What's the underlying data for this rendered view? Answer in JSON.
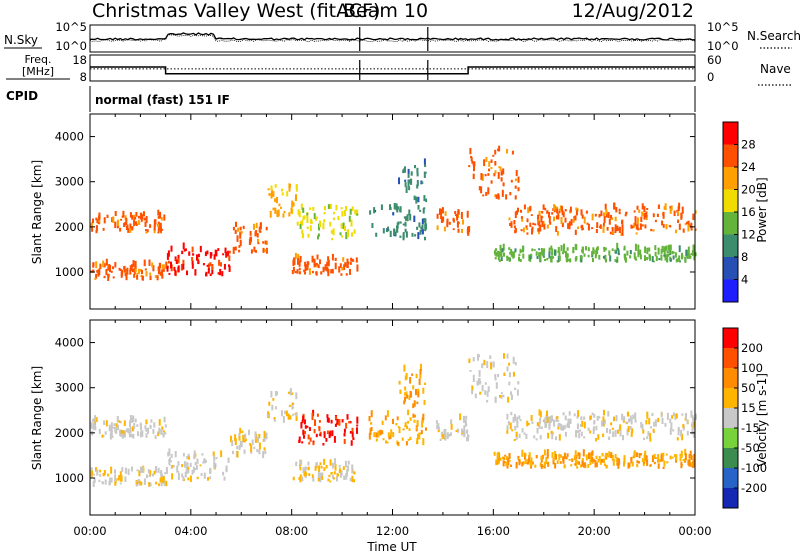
{
  "chart_data": {
    "type": "heatmap",
    "title": "Christmas Valley West (fitACF)",
    "beam_label": "Beam 10",
    "date": "12/Aug/2012",
    "xlabel": "Time UT",
    "x_ticks": [
      "00:00",
      "04:00",
      "08:00",
      "12:00",
      "16:00",
      "20:00",
      "00:00"
    ],
    "x_range_hours": [
      0,
      24
    ],
    "data_gaps_hours": [
      [
        10.7,
        10.95
      ],
      [
        13.4,
        13.6
      ]
    ],
    "status_panels": {
      "noise": {
        "left_label": "N.Sky",
        "left_ticks": [
          "10^5",
          "10^0"
        ],
        "right_label": "N.Search",
        "right_ticks": [
          "10^5",
          "10^0"
        ]
      },
      "frequency": {
        "left_label_line1": "Freq.",
        "left_label_line2": "[MHz]",
        "left_ticks": [
          "18",
          "8"
        ],
        "left_range": [
          8,
          18
        ],
        "right_label": "Nave",
        "right_ticks": [
          "60",
          "0"
        ],
        "right_range": [
          0,
          60
        ],
        "freq_steps": [
          {
            "t0": 0,
            "t1": 3.0,
            "mhz": 14.5
          },
          {
            "t0": 3.0,
            "t1": 15.0,
            "mhz": 10.5
          },
          {
            "t0": 15.0,
            "t1": 24,
            "mhz": 14.5
          }
        ],
        "nave_level": 28
      },
      "cpid": {
        "label": "CPID",
        "text": "normal (fast) 151 IF"
      }
    },
    "panels": [
      {
        "name": "power",
        "ylabel": "Slant Range [km]",
        "y_ticks": [
          "1000",
          "2000",
          "3000",
          "4000"
        ],
        "ylim": [
          180,
          4500
        ],
        "colorbar_label": "Power [dB]",
        "colorbar_ticks": [
          "4",
          "8",
          "12",
          "16",
          "20",
          "24",
          "28"
        ],
        "colorbar_range": [
          0,
          32
        ],
        "colors": [
          "#1e1eff",
          "#2850b4",
          "#3c8c6e",
          "#64b43c",
          "#f0dc00",
          "#ffa000",
          "#ff5000",
          "#ff0000"
        ]
      },
      {
        "name": "velocity",
        "ylabel": "Slant Range [km]",
        "y_ticks": [
          "1000",
          "2000",
          "3000",
          "4000"
        ],
        "ylim": [
          180,
          4500
        ],
        "colorbar_label": "Velocity [m s-1]",
        "colorbar_ticks": [
          "200",
          "100",
          "50",
          "15",
          "-15",
          "-50",
          "-100",
          "-200"
        ],
        "colorbar_range": [
          -250,
          250
        ],
        "colors": [
          "#1428b4",
          "#2864c8",
          "#3c8c50",
          "#78d23c",
          "#c8c8c8",
          "#ffb400",
          "#ff8c00",
          "#ff5000",
          "#ff0000"
        ],
        "ground_scatter_color": "#c8c8c8"
      }
    ],
    "scatter_bands": [
      {
        "t0": 0.0,
        "t1": 3.0,
        "r0": 1850,
        "r1": 2250,
        "p": 27
      },
      {
        "t0": 0.0,
        "t1": 3.0,
        "r0": 800,
        "r1": 1150,
        "p": 24
      },
      {
        "t0": 3.0,
        "t1": 5.5,
        "r0": 900,
        "r1": 1500,
        "p": 28
      },
      {
        "t0": 5.5,
        "t1": 7.0,
        "r0": 1400,
        "r1": 2000,
        "p": 25
      },
      {
        "t0": 7.0,
        "t1": 8.2,
        "r0": 2200,
        "r1": 2900,
        "p": 22
      },
      {
        "t0": 8.0,
        "t1": 10.6,
        "r0": 900,
        "r1": 1300,
        "p": 24
      },
      {
        "t0": 8.2,
        "t1": 10.6,
        "r0": 1700,
        "r1": 2400,
        "p": 16
      },
      {
        "t0": 11.0,
        "t1": 13.3,
        "r0": 1700,
        "r1": 2400,
        "p": 10
      },
      {
        "t0": 12.2,
        "t1": 13.3,
        "r0": 2500,
        "r1": 3400,
        "p": 8
      },
      {
        "t0": 13.7,
        "t1": 15.0,
        "r0": 1800,
        "r1": 2300,
        "p": 26
      },
      {
        "t0": 15.0,
        "t1": 17.0,
        "r0": 2600,
        "r1": 3700,
        "p": 26
      },
      {
        "t0": 16.5,
        "t1": 24.0,
        "r0": 1800,
        "r1": 2400,
        "p": 26
      },
      {
        "t0": 16.0,
        "t1": 24.0,
        "r0": 1200,
        "r1": 1500,
        "p": 14
      }
    ]
  }
}
